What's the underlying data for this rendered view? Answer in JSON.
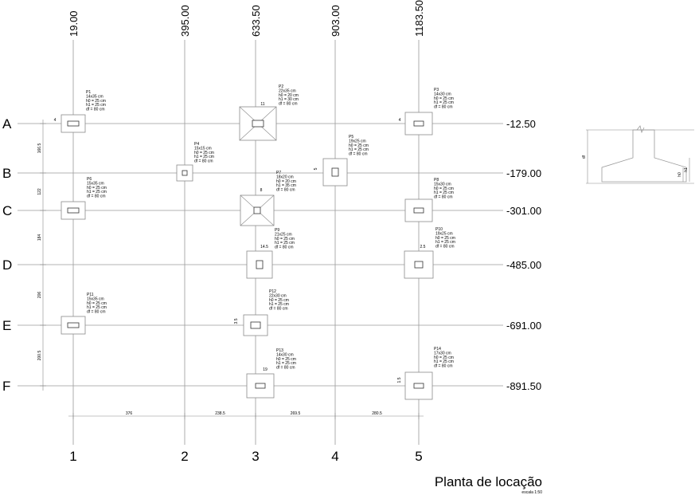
{
  "vertical_axes": [
    {
      "label": "1",
      "coord": "19.00"
    },
    {
      "label": "2",
      "coord": "395.00"
    },
    {
      "label": "3",
      "coord": "633.50"
    },
    {
      "label": "4",
      "coord": "903.00"
    },
    {
      "label": "5",
      "coord": "1183.50"
    }
  ],
  "horizontal_axes": [
    {
      "label": "A",
      "coord": "-12.50"
    },
    {
      "label": "B",
      "coord": "-179.00"
    },
    {
      "label": "C",
      "coord": "-301.00"
    },
    {
      "label": "D",
      "coord": "-485.00"
    },
    {
      "label": "E",
      "coord": "-691.00"
    },
    {
      "label": "F",
      "coord": "-891.50"
    }
  ],
  "row_dimensions": [
    "166.5",
    "122",
    "184",
    "206",
    "200.5"
  ],
  "column_dimensions": [
    "376",
    "238.5",
    "269.5",
    "280.5"
  ],
  "footings": [
    {
      "id": "P1",
      "size": "14x35 cm",
      "h0": "h0 = 25 cm",
      "h1": "h1 = 25 cm",
      "df": "df = 80 cm",
      "offset": "4"
    },
    {
      "id": "P2",
      "size": "22x35 cm",
      "h0": "h0 = 20 cm",
      "h1": "h1 = 30 cm",
      "df": "df = 80 cm",
      "offset": "11"
    },
    {
      "id": "P3",
      "size": "14x30 cm",
      "h0": "h0 = 25 cm",
      "h1": "h1 = 25 cm",
      "df": "df = 80 cm",
      "offset": "4"
    },
    {
      "id": "P4",
      "size": "15x15 cm",
      "h0": "h0 = 25 cm",
      "h1": "h1 = 25 cm",
      "df": "df = 80 cm",
      "offset": ""
    },
    {
      "id": "P5",
      "size": "19x25 cm",
      "h0": "h0 = 25 cm",
      "h1": "h1 = 25 cm",
      "df": "df = 80 cm",
      "offset": "5"
    },
    {
      "id": "P6",
      "size": "15x35 cm",
      "h0": "h0 = 25 cm",
      "h1": "h1 = 25 cm",
      "df": "df = 80 cm",
      "offset": ""
    },
    {
      "id": "P7",
      "size": "18x20 cm",
      "h0": "h0 = 20 cm",
      "h1": "h1 = 35 cm",
      "df": "df = 80 cm",
      "offset": "8"
    },
    {
      "id": "P8",
      "size": "15x30 cm",
      "h0": "h0 = 25 cm",
      "h1": "h1 = 25 cm",
      "df": "df = 80 cm",
      "offset": ""
    },
    {
      "id": "P9",
      "size": "21x25 cm",
      "h0": "h0 = 25 cm",
      "h1": "h1 = 25 cm",
      "df": "df = 80 cm",
      "offset": "14.5"
    },
    {
      "id": "P10",
      "size": "19x25 cm",
      "h0": "h0 = 25 cm",
      "h1": "h1 = 25 cm",
      "df": "df = 80 cm",
      "offset": "2.5"
    },
    {
      "id": "P11",
      "size": "15x35 cm",
      "h0": "h0 = 25 cm",
      "h1": "h1 = 25 cm",
      "df": "df = 80 cm",
      "offset": ""
    },
    {
      "id": "P12",
      "size": "22x30 cm",
      "h0": "h0 = 25 cm",
      "h1": "h1 = 25 cm",
      "df": "df = 80 cm",
      "offset": "3.5"
    },
    {
      "id": "P13",
      "size": "14x30 cm",
      "h0": "h0 = 25 cm",
      "h1": "h1 = 25 cm",
      "df": "df = 80 cm",
      "offset": "19"
    },
    {
      "id": "P14",
      "size": "17x30 cm",
      "h0": "h0 = 25 cm",
      "h1": "h1 = 25 cm",
      "df": "df = 80 cm",
      "offset": "1.5"
    }
  ],
  "detail": {
    "df": "df",
    "h0": "h0",
    "h1": "h1"
  },
  "title": "Planta de locação",
  "scale": "escala 1:50"
}
